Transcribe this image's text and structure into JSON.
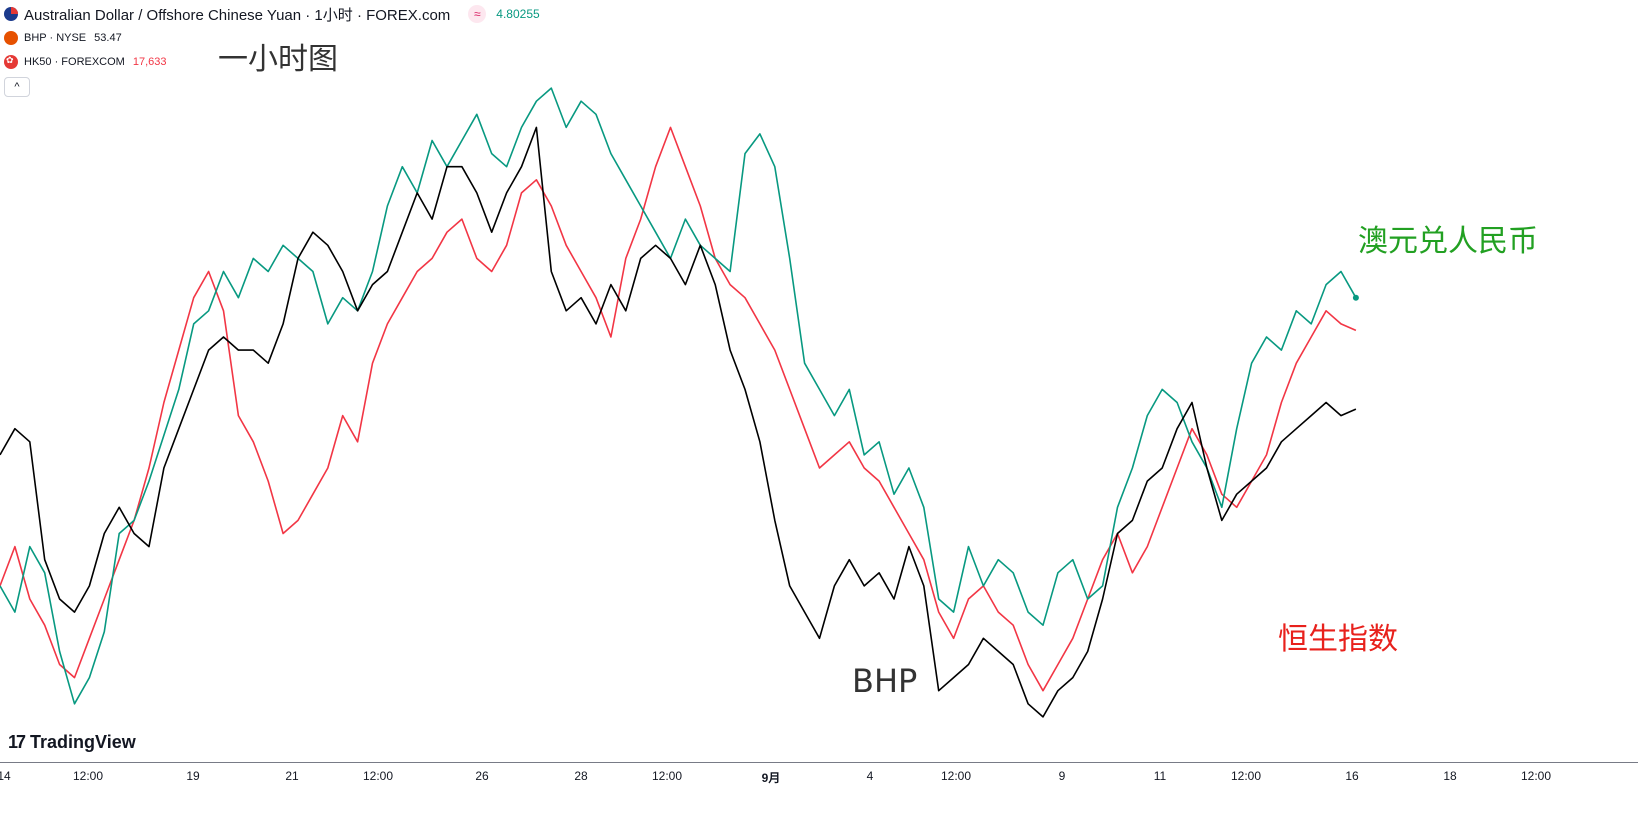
{
  "legend": {
    "main_title": "Australian Dollar / Offshore Chinese Yuan · 1小时 · FOREX.com",
    "main_indicator": "≈",
    "main_price": "4.80255",
    "bhp_label": "BHP · NYSE",
    "bhp_price": "53.47",
    "hk50_label": "HK50 · FOREXCOM",
    "hk50_price": "17,633",
    "collapse_glyph": "^"
  },
  "annotations": {
    "timeframe": "一小时图",
    "audcnh": "澳元兑人民币",
    "bhp": "BHP",
    "hsi": "恒生指数"
  },
  "branding": {
    "logo_mark": "17",
    "logo_text": "TradingView"
  },
  "colors": {
    "audcnh": "#089981",
    "bhp": "#000000",
    "hk50": "#f23645",
    "axis_text": "#131722",
    "annot_green": "#22a022",
    "annot_red": "#e8211c",
    "annot_dark": "#333333"
  },
  "chart_data": {
    "type": "line",
    "title": "Australian Dollar / Offshore Chinese Yuan · 1小时 · FOREX.com",
    "x_ticks": [
      "14",
      "12:00",
      "19",
      "21",
      "12:00",
      "26",
      "28",
      "12:00",
      "9月",
      "4",
      "12:00",
      "9",
      "11",
      "12:00",
      "16",
      "18",
      "12:00"
    ],
    "x_range": [
      0,
      100
    ],
    "series": [
      {
        "name": "AUDCNH",
        "color": "#089981",
        "last_value": 4.80255,
        "points": [
          [
            0,
            0.22
          ],
          [
            1,
            0.18
          ],
          [
            2,
            0.28
          ],
          [
            3,
            0.24
          ],
          [
            4,
            0.12
          ],
          [
            5,
            0.04
          ],
          [
            6,
            0.08
          ],
          [
            7,
            0.15
          ],
          [
            8,
            0.3
          ],
          [
            9,
            0.32
          ],
          [
            10,
            0.38
          ],
          [
            11,
            0.45
          ],
          [
            12,
            0.52
          ],
          [
            13,
            0.62
          ],
          [
            14,
            0.64
          ],
          [
            15,
            0.7
          ],
          [
            16,
            0.66
          ],
          [
            17,
            0.72
          ],
          [
            18,
            0.7
          ],
          [
            19,
            0.74
          ],
          [
            20,
            0.72
          ],
          [
            21,
            0.7
          ],
          [
            22,
            0.62
          ],
          [
            23,
            0.66
          ],
          [
            24,
            0.64
          ],
          [
            25,
            0.7
          ],
          [
            26,
            0.8
          ],
          [
            27,
            0.86
          ],
          [
            28,
            0.82
          ],
          [
            29,
            0.9
          ],
          [
            30,
            0.86
          ],
          [
            31,
            0.9
          ],
          [
            32,
            0.94
          ],
          [
            33,
            0.88
          ],
          [
            34,
            0.86
          ],
          [
            35,
            0.92
          ],
          [
            36,
            0.96
          ],
          [
            37,
            0.98
          ],
          [
            38,
            0.92
          ],
          [
            39,
            0.96
          ],
          [
            40,
            0.94
          ],
          [
            41,
            0.88
          ],
          [
            42,
            0.84
          ],
          [
            43,
            0.8
          ],
          [
            44,
            0.76
          ],
          [
            45,
            0.72
          ],
          [
            46,
            0.78
          ],
          [
            47,
            0.74
          ],
          [
            48,
            0.72
          ],
          [
            49,
            0.7
          ],
          [
            50,
            0.88
          ],
          [
            51,
            0.91
          ],
          [
            52,
            0.86
          ],
          [
            53,
            0.72
          ],
          [
            54,
            0.56
          ],
          [
            55,
            0.52
          ],
          [
            56,
            0.48
          ],
          [
            57,
            0.52
          ],
          [
            58,
            0.42
          ],
          [
            59,
            0.44
          ],
          [
            60,
            0.36
          ],
          [
            61,
            0.4
          ],
          [
            62,
            0.34
          ],
          [
            63,
            0.2
          ],
          [
            64,
            0.18
          ],
          [
            65,
            0.28
          ],
          [
            66,
            0.22
          ],
          [
            67,
            0.26
          ],
          [
            68,
            0.24
          ],
          [
            69,
            0.18
          ],
          [
            70,
            0.16
          ],
          [
            71,
            0.24
          ],
          [
            72,
            0.26
          ],
          [
            73,
            0.2
          ],
          [
            74,
            0.22
          ],
          [
            75,
            0.34
          ],
          [
            76,
            0.4
          ],
          [
            77,
            0.48
          ],
          [
            78,
            0.52
          ],
          [
            79,
            0.5
          ],
          [
            80,
            0.44
          ],
          [
            81,
            0.4
          ],
          [
            82,
            0.34
          ],
          [
            83,
            0.46
          ],
          [
            84,
            0.56
          ],
          [
            85,
            0.6
          ],
          [
            86,
            0.58
          ],
          [
            87,
            0.64
          ],
          [
            88,
            0.62
          ],
          [
            89,
            0.68
          ],
          [
            90,
            0.7
          ],
          [
            91,
            0.66
          ]
        ]
      },
      {
        "name": "BHP",
        "color": "#000000",
        "last_value": 53.47,
        "points": [
          [
            0,
            0.42
          ],
          [
            1,
            0.46
          ],
          [
            2,
            0.44
          ],
          [
            3,
            0.26
          ],
          [
            4,
            0.2
          ],
          [
            5,
            0.18
          ],
          [
            6,
            0.22
          ],
          [
            7,
            0.3
          ],
          [
            8,
            0.34
          ],
          [
            9,
            0.3
          ],
          [
            10,
            0.28
          ],
          [
            11,
            0.4
          ],
          [
            12,
            0.46
          ],
          [
            13,
            0.52
          ],
          [
            14,
            0.58
          ],
          [
            15,
            0.6
          ],
          [
            16,
            0.58
          ],
          [
            17,
            0.58
          ],
          [
            18,
            0.56
          ],
          [
            19,
            0.62
          ],
          [
            20,
            0.72
          ],
          [
            21,
            0.76
          ],
          [
            22,
            0.74
          ],
          [
            23,
            0.7
          ],
          [
            24,
            0.64
          ],
          [
            25,
            0.68
          ],
          [
            26,
            0.7
          ],
          [
            27,
            0.76
          ],
          [
            28,
            0.82
          ],
          [
            29,
            0.78
          ],
          [
            30,
            0.86
          ],
          [
            31,
            0.86
          ],
          [
            32,
            0.82
          ],
          [
            33,
            0.76
          ],
          [
            34,
            0.82
          ],
          [
            35,
            0.86
          ],
          [
            36,
            0.92
          ],
          [
            37,
            0.7
          ],
          [
            38,
            0.64
          ],
          [
            39,
            0.66
          ],
          [
            40,
            0.62
          ],
          [
            41,
            0.68
          ],
          [
            42,
            0.64
          ],
          [
            43,
            0.72
          ],
          [
            44,
            0.74
          ],
          [
            45,
            0.72
          ],
          [
            46,
            0.68
          ],
          [
            47,
            0.74
          ],
          [
            48,
            0.68
          ],
          [
            49,
            0.58
          ],
          [
            50,
            0.52
          ],
          [
            51,
            0.44
          ],
          [
            52,
            0.32
          ],
          [
            53,
            0.22
          ],
          [
            54,
            0.18
          ],
          [
            55,
            0.14
          ],
          [
            56,
            0.22
          ],
          [
            57,
            0.26
          ],
          [
            58,
            0.22
          ],
          [
            59,
            0.24
          ],
          [
            60,
            0.2
          ],
          [
            61,
            0.28
          ],
          [
            62,
            0.22
          ],
          [
            63,
            0.06
          ],
          [
            64,
            0.08
          ],
          [
            65,
            0.1
          ],
          [
            66,
            0.14
          ],
          [
            67,
            0.12
          ],
          [
            68,
            0.1
          ],
          [
            69,
            0.04
          ],
          [
            70,
            0.02
          ],
          [
            71,
            0.06
          ],
          [
            72,
            0.08
          ],
          [
            73,
            0.12
          ],
          [
            74,
            0.2
          ],
          [
            75,
            0.3
          ],
          [
            76,
            0.32
          ],
          [
            77,
            0.38
          ],
          [
            78,
            0.4
          ],
          [
            79,
            0.46
          ],
          [
            80,
            0.5
          ],
          [
            81,
            0.4
          ],
          [
            82,
            0.32
          ],
          [
            83,
            0.36
          ],
          [
            84,
            0.38
          ],
          [
            85,
            0.4
          ],
          [
            86,
            0.44
          ],
          [
            87,
            0.46
          ],
          [
            88,
            0.48
          ],
          [
            89,
            0.5
          ],
          [
            90,
            0.48
          ],
          [
            91,
            0.49
          ]
        ]
      },
      {
        "name": "HK50",
        "color": "#f23645",
        "last_value": 17633,
        "points": [
          [
            0,
            0.22
          ],
          [
            1,
            0.28
          ],
          [
            2,
            0.2
          ],
          [
            3,
            0.16
          ],
          [
            4,
            0.1
          ],
          [
            5,
            0.08
          ],
          [
            6,
            0.14
          ],
          [
            7,
            0.2
          ],
          [
            8,
            0.26
          ],
          [
            9,
            0.32
          ],
          [
            10,
            0.4
          ],
          [
            11,
            0.5
          ],
          [
            12,
            0.58
          ],
          [
            13,
            0.66
          ],
          [
            14,
            0.7
          ],
          [
            15,
            0.64
          ],
          [
            16,
            0.48
          ],
          [
            17,
            0.44
          ],
          [
            18,
            0.38
          ],
          [
            19,
            0.3
          ],
          [
            20,
            0.32
          ],
          [
            21,
            0.36
          ],
          [
            22,
            0.4
          ],
          [
            23,
            0.48
          ],
          [
            24,
            0.44
          ],
          [
            25,
            0.56
          ],
          [
            26,
            0.62
          ],
          [
            27,
            0.66
          ],
          [
            28,
            0.7
          ],
          [
            29,
            0.72
          ],
          [
            30,
            0.76
          ],
          [
            31,
            0.78
          ],
          [
            32,
            0.72
          ],
          [
            33,
            0.7
          ],
          [
            34,
            0.74
          ],
          [
            35,
            0.82
          ],
          [
            36,
            0.84
          ],
          [
            37,
            0.8
          ],
          [
            38,
            0.74
          ],
          [
            39,
            0.7
          ],
          [
            40,
            0.66
          ],
          [
            41,
            0.6
          ],
          [
            42,
            0.72
          ],
          [
            43,
            0.78
          ],
          [
            44,
            0.86
          ],
          [
            45,
            0.92
          ],
          [
            46,
            0.86
          ],
          [
            47,
            0.8
          ],
          [
            48,
            0.72
          ],
          [
            49,
            0.68
          ],
          [
            50,
            0.66
          ],
          [
            51,
            0.62
          ],
          [
            52,
            0.58
          ],
          [
            53,
            0.52
          ],
          [
            54,
            0.46
          ],
          [
            55,
            0.4
          ],
          [
            56,
            0.42
          ],
          [
            57,
            0.44
          ],
          [
            58,
            0.4
          ],
          [
            59,
            0.38
          ],
          [
            60,
            0.34
          ],
          [
            61,
            0.3
          ],
          [
            62,
            0.26
          ],
          [
            63,
            0.18
          ],
          [
            64,
            0.14
          ],
          [
            65,
            0.2
          ],
          [
            66,
            0.22
          ],
          [
            67,
            0.18
          ],
          [
            68,
            0.16
          ],
          [
            69,
            0.1
          ],
          [
            70,
            0.06
          ],
          [
            71,
            0.1
          ],
          [
            72,
            0.14
          ],
          [
            73,
            0.2
          ],
          [
            74,
            0.26
          ],
          [
            75,
            0.3
          ],
          [
            76,
            0.24
          ],
          [
            77,
            0.28
          ],
          [
            78,
            0.34
          ],
          [
            79,
            0.4
          ],
          [
            80,
            0.46
          ],
          [
            81,
            0.42
          ],
          [
            82,
            0.36
          ],
          [
            83,
            0.34
          ],
          [
            84,
            0.38
          ],
          [
            85,
            0.42
          ],
          [
            86,
            0.5
          ],
          [
            87,
            0.56
          ],
          [
            88,
            0.6
          ],
          [
            89,
            0.64
          ],
          [
            90,
            0.62
          ],
          [
            91,
            0.61
          ]
        ]
      }
    ]
  }
}
